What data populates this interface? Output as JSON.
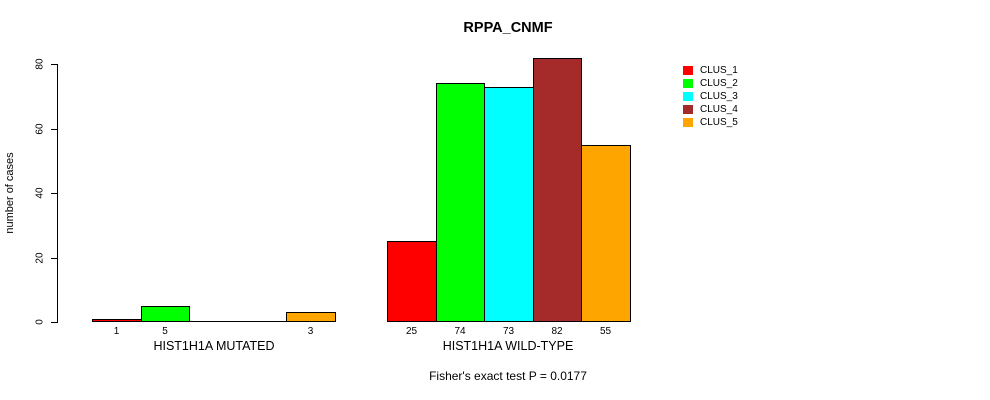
{
  "chart_data": {
    "type": "bar",
    "title": "RPPA_CNMF",
    "xlabel": "",
    "ylabel": "number of cases",
    "ylim": [
      0,
      80
    ],
    "yticks": [
      0,
      20,
      40,
      60,
      80
    ],
    "grid": false,
    "legend_position": "right",
    "series_names": [
      "CLUS_1",
      "CLUS_2",
      "CLUS_3",
      "CLUS_4",
      "CLUS_5"
    ],
    "colors": [
      "#FF0000",
      "#00FF00",
      "#00FFFF",
      "#A52A2A",
      "#FFA500"
    ],
    "legend": {
      "entries": [
        {
          "label": "CLUS_1",
          "color": "#FF0000"
        },
        {
          "label": "CLUS_2",
          "color": "#00FF00"
        },
        {
          "label": "CLUS_3",
          "color": "#00FFFF"
        },
        {
          "label": "CLUS_4",
          "color": "#A52A2A"
        },
        {
          "label": "CLUS_5",
          "color": "#FFA500"
        }
      ]
    },
    "groups": [
      {
        "label": "HIST1H1A MUTATED",
        "values": [
          1,
          5,
          0,
          0,
          3
        ],
        "bar_labels": [
          "1",
          "5",
          "",
          "",
          "3"
        ]
      },
      {
        "label": "HIST1H1A WILD-TYPE",
        "values": [
          25,
          74,
          73,
          82,
          55
        ],
        "bar_labels": [
          "25",
          "74",
          "73",
          "82",
          "55"
        ]
      }
    ],
    "footnote": "Fisher's exact test P = 0.0177"
  }
}
